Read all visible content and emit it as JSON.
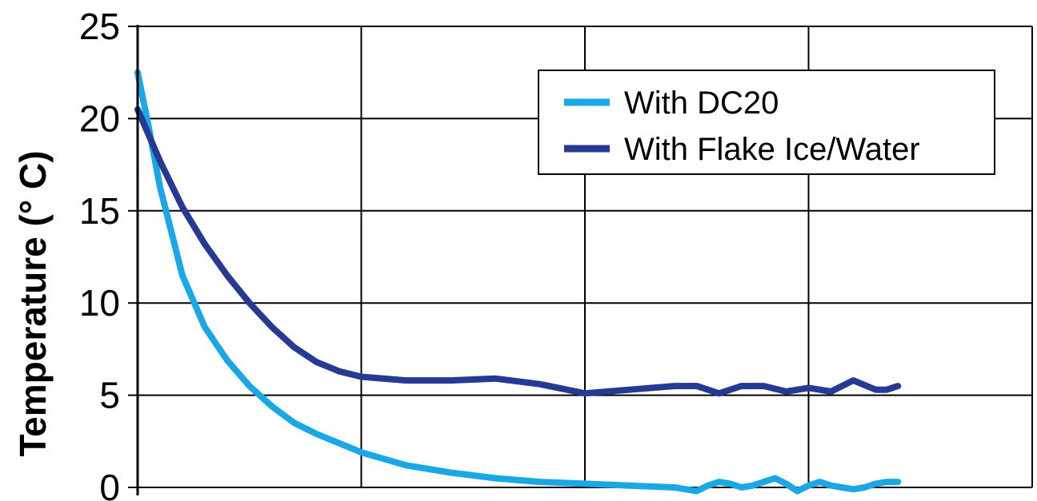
{
  "chart_data": {
    "type": "line",
    "title": "",
    "xlabel": "",
    "ylabel": "Temperature (° C)",
    "ylim": [
      0,
      25
    ],
    "yticks": [
      "0",
      "5",
      "10",
      "15",
      "20",
      "25"
    ],
    "xlim": [
      0,
      400
    ],
    "x_gridlines": [
      100,
      200,
      300,
      400
    ],
    "grid": true,
    "legend_position": "top-right",
    "series": [
      {
        "name": "With DC20",
        "color": "#1aa7e6",
        "x": [
          0,
          5,
          10,
          20,
          30,
          40,
          50,
          60,
          70,
          80,
          90,
          100,
          120,
          140,
          160,
          180,
          200,
          220,
          240,
          250,
          255,
          260,
          265,
          270,
          275,
          280,
          285,
          290,
          295,
          300,
          305,
          310,
          315,
          320,
          325,
          330,
          335,
          340
        ],
        "y": [
          22.5,
          19.5,
          16.3,
          11.5,
          8.7,
          6.9,
          5.5,
          4.4,
          3.5,
          2.9,
          2.4,
          1.9,
          1.2,
          0.8,
          0.5,
          0.3,
          0.2,
          0.1,
          0.0,
          -0.2,
          0.1,
          0.3,
          0.2,
          0.0,
          0.1,
          0.3,
          0.5,
          0.2,
          -0.2,
          0.1,
          0.3,
          0.1,
          0.0,
          -0.1,
          0.0,
          0.2,
          0.3,
          0.3
        ]
      },
      {
        "name": "With Flake Ice/Water",
        "color": "#273a93",
        "x": [
          0,
          10,
          20,
          30,
          40,
          50,
          60,
          70,
          80,
          90,
          100,
          120,
          140,
          160,
          180,
          200,
          220,
          240,
          250,
          260,
          270,
          280,
          290,
          300,
          310,
          320,
          330,
          335,
          340
        ],
        "y": [
          20.5,
          17.7,
          15.2,
          13.2,
          11.5,
          10.0,
          8.7,
          7.6,
          6.8,
          6.3,
          6.0,
          5.8,
          5.8,
          5.9,
          5.6,
          5.1,
          5.3,
          5.5,
          5.5,
          5.1,
          5.5,
          5.5,
          5.2,
          5.4,
          5.2,
          5.8,
          5.3,
          5.3,
          5.5
        ]
      }
    ]
  }
}
